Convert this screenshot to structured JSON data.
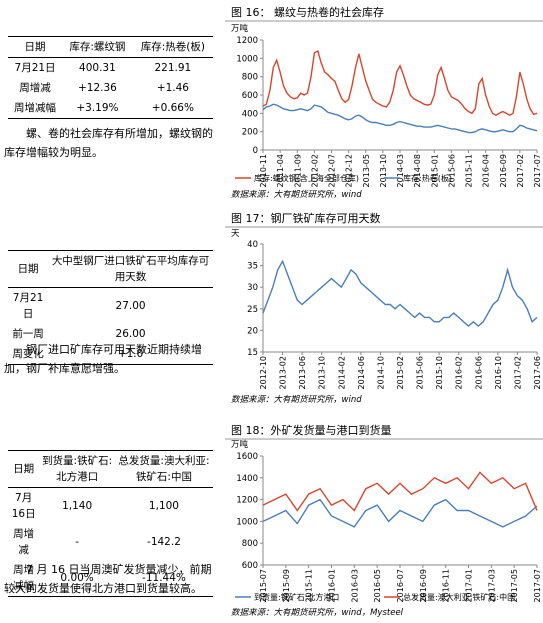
{
  "tables": [
    {
      "header": [
        "日期",
        "库存:螺纹钢",
        "库存:热卷(板)"
      ],
      "rows": [
        [
          "7月21日",
          "400.31",
          "221.91"
        ],
        [
          "周增减",
          "+12.36",
          "+1.46"
        ],
        [
          "周增减幅",
          "+3.19%",
          "+0.66%"
        ]
      ]
    },
    {
      "header": [
        "日期",
        "大中型钢厂进口铁矿石平均库存可用天数"
      ],
      "rows": [
        [
          "7月21日",
          "27.00"
        ],
        [
          "前一周",
          "26.00"
        ],
        [
          "周变化",
          "+1.0"
        ]
      ]
    },
    {
      "header": [
        "日期",
        "到货量:铁矿石:北方港口",
        "总发货量:澳大利亚:铁矿石:中国"
      ],
      "rows": [
        [
          "7月16日",
          "1,140",
          "1,100"
        ],
        [
          "周增减",
          "-",
          "-142.2"
        ],
        [
          "周增减幅",
          "0.00%",
          "-11.44%"
        ]
      ]
    }
  ],
  "notes": [
    "螺、卷的社会库存有所增加，螺纹钢的库存增幅较为明显。",
    "钢厂进口矿库存可用天数近期持续增加，钢厂补库意愿增强。",
    "7 月 16 日当周澳矿发货量减少，前期较大的发货量使得北方港口到货量较高。"
  ],
  "chart_data": [
    {
      "type": "line",
      "title": "图 16： 螺纹与热卷的社会库存",
      "y_unit": "万吨",
      "source": "数据来源：大有期货研究所，wind",
      "legend": "bottom",
      "categories": [
        "2010-11",
        null,
        null,
        null,
        null,
        "2011-04",
        null,
        null,
        null,
        null,
        "2011-09",
        null,
        null,
        null,
        null,
        "2012-02",
        null,
        null,
        null,
        null,
        "2012-07",
        null,
        null,
        null,
        null,
        "2012-12",
        null,
        null,
        null,
        null,
        "2013-05",
        null,
        null,
        null,
        null,
        "2013-10",
        null,
        null,
        null,
        null,
        "2014-03",
        null,
        null,
        null,
        null,
        "2014-08",
        null,
        null,
        null,
        null,
        "2015-01",
        null,
        null,
        null,
        null,
        "2015-06",
        null,
        null,
        null,
        null,
        "2015-11",
        null,
        null,
        null,
        null,
        "2016-04",
        null,
        null,
        null,
        null,
        "2016-09",
        null,
        null,
        null,
        null,
        "2017-02",
        null,
        null,
        null,
        null,
        "2017-07"
      ],
      "ylim": [
        0,
        1200
      ],
      "yticks": [
        0,
        200,
        400,
        600,
        800,
        1000,
        1200
      ],
      "series": [
        {
          "name": "库存:螺纹钢(含上海全部仓库)",
          "color": "#d9452b",
          "values": [
            480,
            500,
            650,
            900,
            980,
            850,
            700,
            620,
            580,
            560,
            570,
            620,
            600,
            620,
            800,
            1060,
            1080,
            950,
            850,
            820,
            780,
            750,
            650,
            560,
            520,
            550,
            700,
            900,
            1050,
            900,
            750,
            650,
            550,
            520,
            500,
            480,
            470,
            520,
            650,
            850,
            920,
            820,
            700,
            600,
            560,
            540,
            520,
            500,
            490,
            500,
            600,
            820,
            900,
            780,
            650,
            580,
            560,
            540,
            500,
            450,
            420,
            400,
            450,
            720,
            780,
            600,
            480,
            400,
            380,
            400,
            420,
            400,
            380,
            400,
            580,
            850,
            720,
            560,
            450,
            390,
            400
          ]
        },
        {
          "name": "库存:热卷(板)",
          "color": "#4a7ebb",
          "values": [
            440,
            470,
            480,
            500,
            490,
            470,
            450,
            440,
            430,
            430,
            440,
            450,
            440,
            430,
            450,
            490,
            480,
            470,
            440,
            410,
            400,
            390,
            380,
            360,
            340,
            330,
            340,
            370,
            380,
            360,
            330,
            310,
            300,
            300,
            290,
            280,
            270,
            270,
            280,
            300,
            310,
            300,
            290,
            280,
            270,
            260,
            260,
            250,
            250,
            250,
            260,
            270,
            260,
            250,
            240,
            230,
            230,
            220,
            210,
            200,
            190,
            190,
            200,
            220,
            230,
            220,
            210,
            200,
            200,
            210,
            220,
            210,
            200,
            200,
            230,
            270,
            260,
            240,
            230,
            220,
            210
          ]
        }
      ]
    },
    {
      "type": "line",
      "title": "图 17：钢厂铁矿库存可用天数",
      "y_unit": "天",
      "source": "数据来源：大有期货研究所，wind",
      "color": "#4a7ebb",
      "categories": [
        "2012-10",
        null,
        null,
        null,
        "2013-02",
        null,
        null,
        null,
        "2013-06",
        null,
        null,
        null,
        "2013-10",
        null,
        null,
        null,
        "2014-02",
        null,
        null,
        null,
        "2014-06",
        null,
        null,
        null,
        "2014-10",
        null,
        null,
        null,
        "2015-02",
        null,
        null,
        null,
        "2015-06",
        null,
        null,
        null,
        "2015-10",
        null,
        null,
        null,
        "2016-02",
        null,
        null,
        null,
        "2016-06",
        null,
        null,
        null,
        "2016-10",
        null,
        null,
        null,
        "2017-02",
        null,
        null,
        null,
        "2017-06"
      ],
      "ylim": [
        15,
        40
      ],
      "yticks": [
        15,
        20,
        25,
        30,
        35,
        40
      ],
      "values": [
        24,
        27,
        30,
        34,
        36,
        33,
        30,
        27,
        26,
        27,
        28,
        29,
        30,
        31,
        32,
        31,
        30,
        32,
        34,
        33,
        31,
        30,
        29,
        28,
        27,
        26,
        26,
        25,
        26,
        25,
        24,
        23,
        24,
        23,
        23,
        22,
        22,
        23,
        23,
        24,
        23,
        22,
        21,
        22,
        21,
        22,
        24,
        26,
        27,
        30,
        34,
        30,
        28,
        27,
        25,
        22,
        23
      ]
    },
    {
      "type": "line",
      "title": "图 18：外矿发货量与港口到货量",
      "y_unit": "万吨",
      "source": "数据来源：大有期货研究所，wind，Mysteel",
      "legend": "bottom",
      "categories": [
        "2015-07",
        null,
        "2015-09",
        null,
        "2015-11",
        null,
        "2016-01",
        null,
        "2016-03",
        null,
        "2016-05",
        null,
        "2016-07",
        null,
        "2016-09",
        null,
        "2016-11",
        null,
        "2017-01",
        null,
        "2017-03",
        null,
        "2017-05",
        null,
        "2017-07"
      ],
      "ylim": [
        600,
        1600
      ],
      "yticks": [
        600,
        800,
        1000,
        1200,
        1400,
        1600
      ],
      "series": [
        {
          "name": "到货量:铁矿石:北方港口",
          "color": "#4a7ebb",
          "values": [
            1000,
            1050,
            1100,
            980,
            1150,
            1200,
            1050,
            1000,
            950,
            1100,
            1150,
            1000,
            1100,
            1050,
            1000,
            1150,
            1200,
            1100,
            1100,
            1050,
            1000,
            950,
            1000,
            1050,
            1140
          ]
        },
        {
          "name": "总发货量:澳大利亚:铁矿石:中国",
          "color": "#d9452b",
          "values": [
            1150,
            1200,
            1250,
            1100,
            1250,
            1300,
            1150,
            1200,
            1100,
            1300,
            1350,
            1250,
            1350,
            1250,
            1300,
            1400,
            1350,
            1400,
            1300,
            1450,
            1350,
            1400,
            1300,
            1350,
            1100
          ]
        }
      ]
    }
  ]
}
